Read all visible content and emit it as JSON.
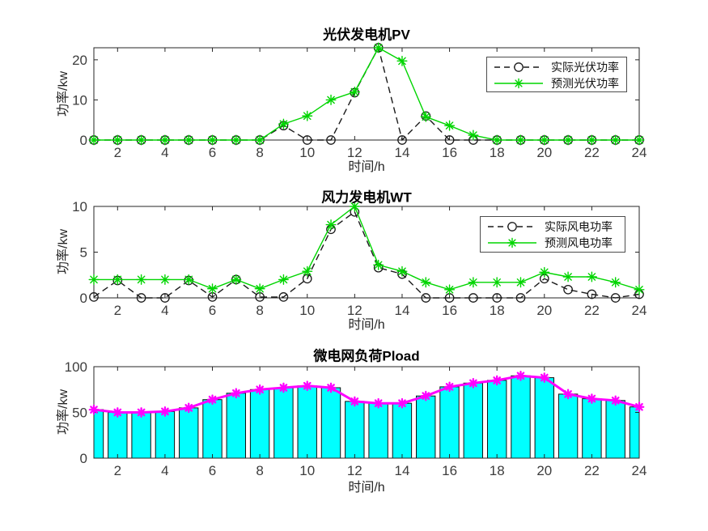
{
  "chart_data": [
    {
      "type": "line",
      "title": "光伏发电机PV",
      "xlabel": "时间/h",
      "ylabel": "功率/kw",
      "x": [
        1,
        2,
        3,
        4,
        5,
        6,
        7,
        8,
        9,
        10,
        11,
        12,
        13,
        14,
        15,
        16,
        17,
        18,
        19,
        20,
        21,
        22,
        23,
        24
      ],
      "xlim": [
        1,
        24
      ],
      "ylim": [
        0,
        23
      ],
      "xticks": [
        2,
        4,
        6,
        8,
        10,
        12,
        14,
        16,
        18,
        20,
        22,
        24
      ],
      "yticks": [
        0,
        10,
        20
      ],
      "grid": false,
      "legend_position": "upper-right",
      "series": [
        {
          "name": "实际光伏功率",
          "color": "#1a1a1a",
          "line": "dashed",
          "marker": "circle",
          "values": [
            0,
            0,
            0,
            0,
            0,
            0,
            0,
            0,
            3.6,
            0,
            0,
            11.8,
            23,
            0,
            6,
            0,
            0,
            0,
            0,
            0,
            0,
            0,
            0,
            0
          ]
        },
        {
          "name": "预测光伏功率",
          "color": "#00d500",
          "line": "solid",
          "marker": "asterisk",
          "values": [
            0,
            0,
            0,
            0,
            0,
            0,
            0,
            0,
            4,
            6,
            10,
            12,
            23,
            19.7,
            5.8,
            3.6,
            1.2,
            0,
            0,
            0,
            0,
            0,
            0,
            0
          ]
        }
      ]
    },
    {
      "type": "line",
      "title": "风力发电机WT",
      "xlabel": "时间/h",
      "ylabel": "功率/kw",
      "x": [
        1,
        2,
        3,
        4,
        5,
        6,
        7,
        8,
        9,
        10,
        11,
        12,
        13,
        14,
        15,
        16,
        17,
        18,
        19,
        20,
        21,
        22,
        23,
        24
      ],
      "xlim": [
        1,
        24
      ],
      "ylim": [
        0,
        10
      ],
      "xticks": [
        2,
        4,
        6,
        8,
        10,
        12,
        14,
        16,
        18,
        20,
        22,
        24
      ],
      "yticks": [
        0,
        5,
        10
      ],
      "grid": false,
      "legend_position": "upper-right",
      "series": [
        {
          "name": "实际风电功率",
          "color": "#1a1a1a",
          "line": "dashed",
          "marker": "circle",
          "values": [
            0.1,
            1.9,
            0,
            0,
            1.9,
            0.1,
            2,
            0.1,
            0.1,
            2.1,
            7.5,
            9.4,
            3.3,
            2.6,
            0,
            0,
            0,
            0,
            0,
            2.1,
            0.9,
            0.4,
            0,
            0.4
          ]
        },
        {
          "name": "预测风电功率",
          "color": "#00d500",
          "line": "solid",
          "marker": "asterisk",
          "values": [
            2,
            2,
            2,
            2,
            2,
            1,
            2,
            1,
            2,
            2.9,
            8,
            10,
            3.6,
            2.9,
            1.7,
            0.9,
            1.7,
            1.7,
            1.7,
            2.8,
            2.3,
            2.3,
            1.7,
            0.9
          ]
        }
      ]
    },
    {
      "type": "bar",
      "title": "微电网负荷Pload",
      "xlabel": "时间/h",
      "ylabel": "功率/kw",
      "x": [
        1,
        2,
        3,
        4,
        5,
        6,
        7,
        8,
        9,
        10,
        11,
        12,
        13,
        14,
        15,
        16,
        17,
        18,
        19,
        20,
        21,
        22,
        23,
        24
      ],
      "xlim": [
        1,
        24
      ],
      "ylim": [
        0,
        100
      ],
      "xticks": [
        2,
        4,
        6,
        8,
        10,
        12,
        14,
        16,
        18,
        20,
        22,
        24
      ],
      "yticks": [
        0,
        50,
        100
      ],
      "grid": false,
      "bars": {
        "fill": "#00ffff",
        "edge": "#111111",
        "width": 0.8,
        "values": [
          53,
          50,
          50,
          51,
          55,
          64,
          71,
          75,
          77,
          79,
          77,
          62,
          60,
          60,
          68,
          78,
          82,
          85,
          90,
          88,
          70,
          65,
          63,
          56
        ]
      },
      "overlay_line": {
        "color": "#ff00ff",
        "line": "solid",
        "marker": "asterisk",
        "lw": 3,
        "msize": 5.2,
        "mw": 2.3
      }
    }
  ]
}
